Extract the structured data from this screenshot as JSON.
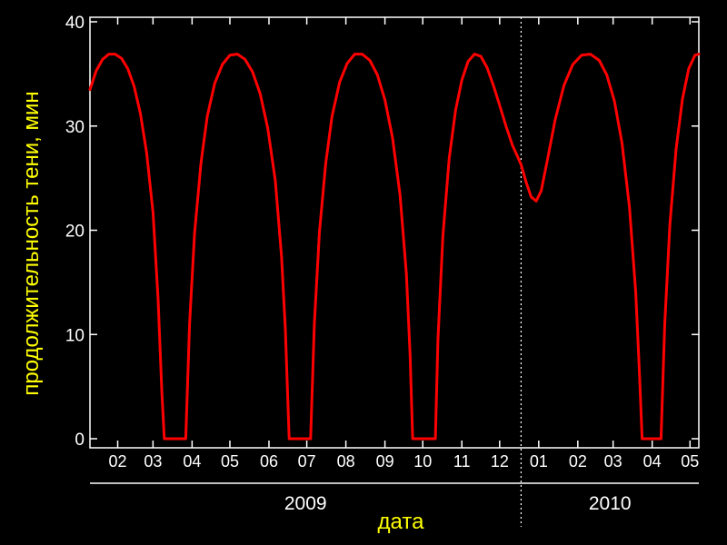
{
  "chart_data": {
    "type": "line",
    "xlabel": "дата",
    "ylabel": "продолжительность тени, мин",
    "ylim": [
      0,
      40
    ],
    "yticks": [
      0,
      10,
      20,
      30,
      40
    ],
    "x_range": [
      "2009-01-24",
      "2010-05-22"
    ],
    "year_divider": "2010-01-01",
    "month_ticks": [
      {
        "label": "02",
        "date": "2009-02-15"
      },
      {
        "label": "03",
        "date": "2009-03-15"
      },
      {
        "label": "04",
        "date": "2009-04-15"
      },
      {
        "label": "05",
        "date": "2009-05-15"
      },
      {
        "label": "06",
        "date": "2009-06-15"
      },
      {
        "label": "07",
        "date": "2009-07-15"
      },
      {
        "label": "08",
        "date": "2009-08-15"
      },
      {
        "label": "09",
        "date": "2009-09-15"
      },
      {
        "label": "10",
        "date": "2009-10-15"
      },
      {
        "label": "11",
        "date": "2009-11-15"
      },
      {
        "label": "12",
        "date": "2009-12-15"
      },
      {
        "label": "01",
        "date": "2010-01-15"
      },
      {
        "label": "02",
        "date": "2010-02-15"
      },
      {
        "label": "03",
        "date": "2010-03-15"
      },
      {
        "label": "04",
        "date": "2010-04-15"
      },
      {
        "label": "05",
        "date": "2010-05-15"
      }
    ],
    "years": [
      {
        "label": "2009",
        "from": "2009-01-24",
        "to": "2010-01-01"
      },
      {
        "label": "2010",
        "from": "2010-01-01",
        "to": "2010-05-22"
      }
    ],
    "series": [
      {
        "color": "#ff0000",
        "points": [
          [
            "2009-01-24",
            33.5
          ],
          [
            "2009-01-29",
            35.3
          ],
          [
            "2009-02-03",
            36.4
          ],
          [
            "2009-02-08",
            36.9
          ],
          [
            "2009-02-13",
            36.9
          ],
          [
            "2009-02-18",
            36.5
          ],
          [
            "2009-02-23",
            35.5
          ],
          [
            "2009-02-28",
            33.8
          ],
          [
            "2009-03-05",
            31.2
          ],
          [
            "2009-03-10",
            27.4
          ],
          [
            "2009-03-15",
            21.7
          ],
          [
            "2009-03-19",
            13.5
          ],
          [
            "2009-03-22",
            4.5
          ],
          [
            "2009-03-24",
            0
          ],
          [
            "2009-04-10",
            0
          ],
          [
            "2009-04-13",
            11.0
          ],
          [
            "2009-04-17",
            19.7
          ],
          [
            "2009-04-22",
            26.4
          ],
          [
            "2009-04-27",
            30.9
          ],
          [
            "2009-05-03",
            34.1
          ],
          [
            "2009-05-09",
            35.9
          ],
          [
            "2009-05-15",
            36.8
          ],
          [
            "2009-05-21",
            36.9
          ],
          [
            "2009-05-27",
            36.4
          ],
          [
            "2009-06-02",
            35.2
          ],
          [
            "2009-06-08",
            33.1
          ],
          [
            "2009-06-14",
            29.8
          ],
          [
            "2009-06-20",
            24.8
          ],
          [
            "2009-06-25",
            17.5
          ],
          [
            "2009-06-28",
            10.5
          ],
          [
            "2009-07-01",
            0
          ],
          [
            "2009-07-18",
            0
          ],
          [
            "2009-07-21",
            11.0
          ],
          [
            "2009-07-25",
            19.8
          ],
          [
            "2009-07-30",
            26.4
          ],
          [
            "2009-08-04",
            30.9
          ],
          [
            "2009-08-10",
            34.2
          ],
          [
            "2009-08-16",
            36.0
          ],
          [
            "2009-08-22",
            36.9
          ],
          [
            "2009-08-28",
            36.9
          ],
          [
            "2009-09-03",
            36.3
          ],
          [
            "2009-09-09",
            34.9
          ],
          [
            "2009-09-15",
            32.5
          ],
          [
            "2009-09-21",
            28.9
          ],
          [
            "2009-09-27",
            23.4
          ],
          [
            "2009-10-02",
            15.8
          ],
          [
            "2009-10-05",
            8.0
          ],
          [
            "2009-10-07",
            0
          ],
          [
            "2009-10-25",
            0
          ],
          [
            "2009-10-27",
            9.5
          ],
          [
            "2009-10-31",
            19.5
          ],
          [
            "2009-11-05",
            26.9
          ],
          [
            "2009-11-10",
            31.5
          ],
          [
            "2009-11-15",
            34.4
          ],
          [
            "2009-11-20",
            36.2
          ],
          [
            "2009-11-25",
            36.9
          ],
          [
            "2009-11-30",
            36.7
          ],
          [
            "2009-12-05",
            35.6
          ],
          [
            "2009-12-10",
            33.9
          ],
          [
            "2009-12-15",
            32.0
          ],
          [
            "2009-12-20",
            30.0
          ],
          [
            "2009-12-25",
            28.2
          ],
          [
            "2010-01-01",
            26.3
          ],
          [
            "2010-01-05",
            24.6
          ],
          [
            "2010-01-09",
            23.2
          ],
          [
            "2010-01-13",
            22.8
          ],
          [
            "2010-01-17",
            23.8
          ],
          [
            "2010-01-22",
            26.8
          ],
          [
            "2010-01-28",
            30.6
          ],
          [
            "2010-02-04",
            33.9
          ],
          [
            "2010-02-11",
            35.9
          ],
          [
            "2010-02-18",
            36.8
          ],
          [
            "2010-02-25",
            36.9
          ],
          [
            "2010-03-04",
            36.3
          ],
          [
            "2010-03-10",
            34.9
          ],
          [
            "2010-03-16",
            32.4
          ],
          [
            "2010-03-22",
            28.4
          ],
          [
            "2010-03-28",
            22.2
          ],
          [
            "2010-04-02",
            14.0
          ],
          [
            "2010-04-05",
            6.0
          ],
          [
            "2010-04-07",
            0
          ],
          [
            "2010-04-22",
            0
          ],
          [
            "2010-04-25",
            11.0
          ],
          [
            "2010-04-29",
            20.5
          ],
          [
            "2010-05-04",
            27.8
          ],
          [
            "2010-05-09",
            32.6
          ],
          [
            "2010-05-14",
            35.5
          ],
          [
            "2010-05-19",
            36.8
          ],
          [
            "2010-05-22",
            36.9
          ]
        ]
      }
    ],
    "grid": false,
    "legend": "none"
  }
}
